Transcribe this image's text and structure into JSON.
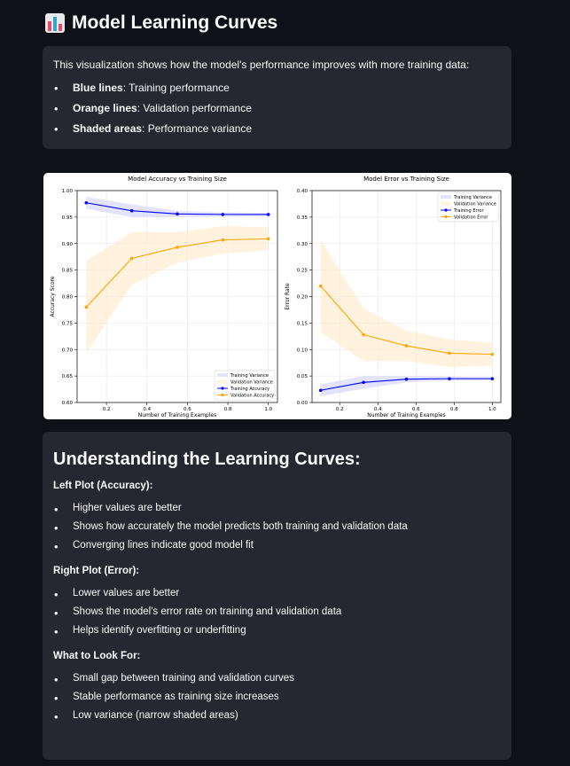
{
  "header": {
    "title": "Model Learning Curves",
    "icon": "bar-chart-icon"
  },
  "intro": {
    "text": "This visualization shows how the model's performance improves with more training data:",
    "items": [
      {
        "bold": "Blue lines",
        "text": ": Training performance"
      },
      {
        "bold": "Orange lines",
        "text": ": Validation performance"
      },
      {
        "bold": "Shaded areas",
        "text": ": Performance variance"
      }
    ]
  },
  "colors": {
    "training": "#0000ff",
    "validation": "#ffa500",
    "background": "#0e1117",
    "card": "#262730"
  },
  "chart_data": [
    {
      "type": "line",
      "title": "Model Accuracy vs Training Size",
      "xlabel": "Number of Training Examples",
      "ylabel": "Accuracy Score",
      "xlim": [
        0.055,
        1.045
      ],
      "ylim": [
        0.6,
        1.0
      ],
      "xticks": [
        "0.2",
        "0.4",
        "0.6",
        "0.8",
        "1.0"
      ],
      "yticks": [
        "0.60",
        "0.65",
        "0.70",
        "0.75",
        "0.80",
        "0.85",
        "0.90",
        "0.95",
        "1.00"
      ],
      "grid": true,
      "legend_position": "lower-right",
      "x": [
        0.1,
        0.325,
        0.55,
        0.775,
        1.0
      ],
      "series": [
        {
          "name": "Training Accuracy",
          "color": "#0000ff",
          "values": [
            0.977,
            0.962,
            0.956,
            0.955,
            0.955
          ],
          "band_upper": [
            0.988,
            0.974,
            0.962,
            0.959,
            0.958
          ],
          "band_lower": [
            0.966,
            0.95,
            0.95,
            0.951,
            0.952
          ]
        },
        {
          "name": "Validation Accuracy",
          "color": "#ffa500",
          "values": [
            0.78,
            0.872,
            0.893,
            0.907,
            0.909
          ],
          "band_upper": [
            0.867,
            0.922,
            0.922,
            0.933,
            0.931
          ],
          "band_lower": [
            0.693,
            0.822,
            0.864,
            0.881,
            0.887
          ]
        }
      ],
      "legend": [
        "Training Variance",
        "Validation Variance",
        "Training Accuracy",
        "Validation Accuracy"
      ]
    },
    {
      "type": "line",
      "title": "Model Error vs Training Size",
      "xlabel": "Number of Training Examples",
      "ylabel": "Error Rate",
      "xlim": [
        0.055,
        1.045
      ],
      "ylim": [
        0.0,
        0.4
      ],
      "xticks": [
        "0.2",
        "0.4",
        "0.6",
        "0.8",
        "1.0"
      ],
      "yticks": [
        "0.00",
        "0.05",
        "0.10",
        "0.15",
        "0.20",
        "0.25",
        "0.30",
        "0.35",
        "0.40"
      ],
      "grid": true,
      "legend_position": "upper-right",
      "x": [
        0.1,
        0.325,
        0.55,
        0.775,
        1.0
      ],
      "series": [
        {
          "name": "Training Error",
          "color": "#0000ff",
          "values": [
            0.023,
            0.038,
            0.044,
            0.045,
            0.045
          ],
          "band_upper": [
            0.034,
            0.05,
            0.05,
            0.049,
            0.048
          ],
          "band_lower": [
            0.012,
            0.026,
            0.038,
            0.041,
            0.042
          ]
        },
        {
          "name": "Validation Error",
          "color": "#ffa500",
          "values": [
            0.22,
            0.128,
            0.107,
            0.093,
            0.091
          ],
          "band_upper": [
            0.307,
            0.178,
            0.136,
            0.119,
            0.113
          ],
          "band_lower": [
            0.133,
            0.078,
            0.078,
            0.067,
            0.069
          ]
        }
      ],
      "legend": [
        "Training Variance",
        "Validation Variance",
        "Training Error",
        "Validation Error"
      ]
    }
  ],
  "understanding": {
    "heading": "Understanding the Learning Curves:",
    "sections": [
      {
        "title": "Left Plot (Accuracy):",
        "items": [
          "Higher values are better",
          "Shows how accurately the model predicts both training and validation data",
          "Converging lines indicate good model fit"
        ]
      },
      {
        "title": "Right Plot (Error):",
        "items": [
          "Lower values are better",
          "Shows the model's error rate on training and validation data",
          "Helps identify overfitting or underfitting"
        ]
      },
      {
        "title": "What to Look For:",
        "items": [
          "Small gap between training and validation curves",
          "Stable performance as training size increases",
          "Low variance (narrow shaded areas)"
        ]
      }
    ]
  }
}
